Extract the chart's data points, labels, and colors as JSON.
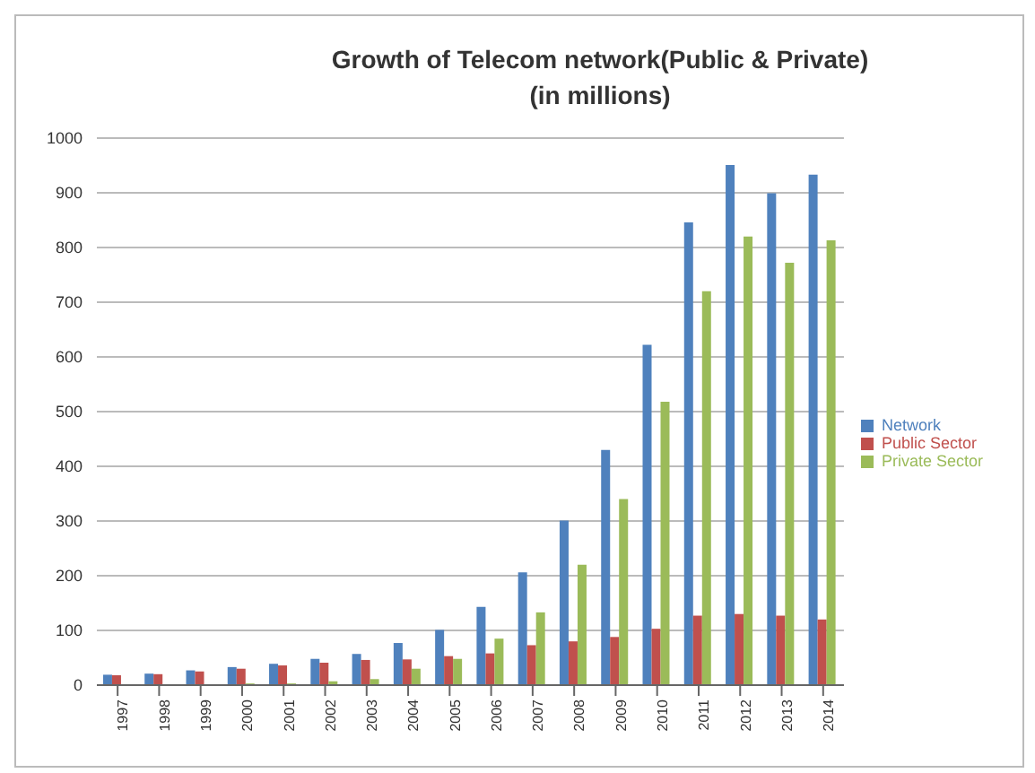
{
  "chart_data": {
    "type": "bar",
    "title": "Growth of Telecom network(Public & Private)\n(in millions)",
    "categories": [
      "1997",
      "1998",
      "1999",
      "2000",
      "2001",
      "2002",
      "2003",
      "2004",
      "2005",
      "2006",
      "2007",
      "2008",
      "2009",
      "2010",
      "2011",
      "2012",
      "2013",
      "2014"
    ],
    "series": [
      {
        "name": "Network",
        "color": "#4f81bd",
        "values": [
          19,
          21,
          27,
          33,
          39,
          48,
          57,
          77,
          101,
          143,
          206,
          301,
          430,
          622,
          846,
          951,
          899,
          933
        ]
      },
      {
        "name": "Public Sector",
        "color": "#c0504d",
        "values": [
          18,
          20,
          25,
          30,
          36,
          41,
          46,
          47,
          53,
          58,
          73,
          80,
          88,
          103,
          127,
          130,
          127,
          120
        ]
      },
      {
        "name": "Private Sector",
        "color": "#9bbb59",
        "values": [
          null,
          null,
          null,
          3,
          3,
          7,
          11,
          30,
          48,
          85,
          133,
          220,
          340,
          518,
          720,
          820,
          772,
          813
        ]
      }
    ],
    "ylim": [
      0,
      1000
    ],
    "yticks": [
      0,
      100,
      200,
      300,
      400,
      500,
      600,
      700,
      800,
      900,
      1000
    ],
    "grid": "y",
    "legend": "right"
  }
}
